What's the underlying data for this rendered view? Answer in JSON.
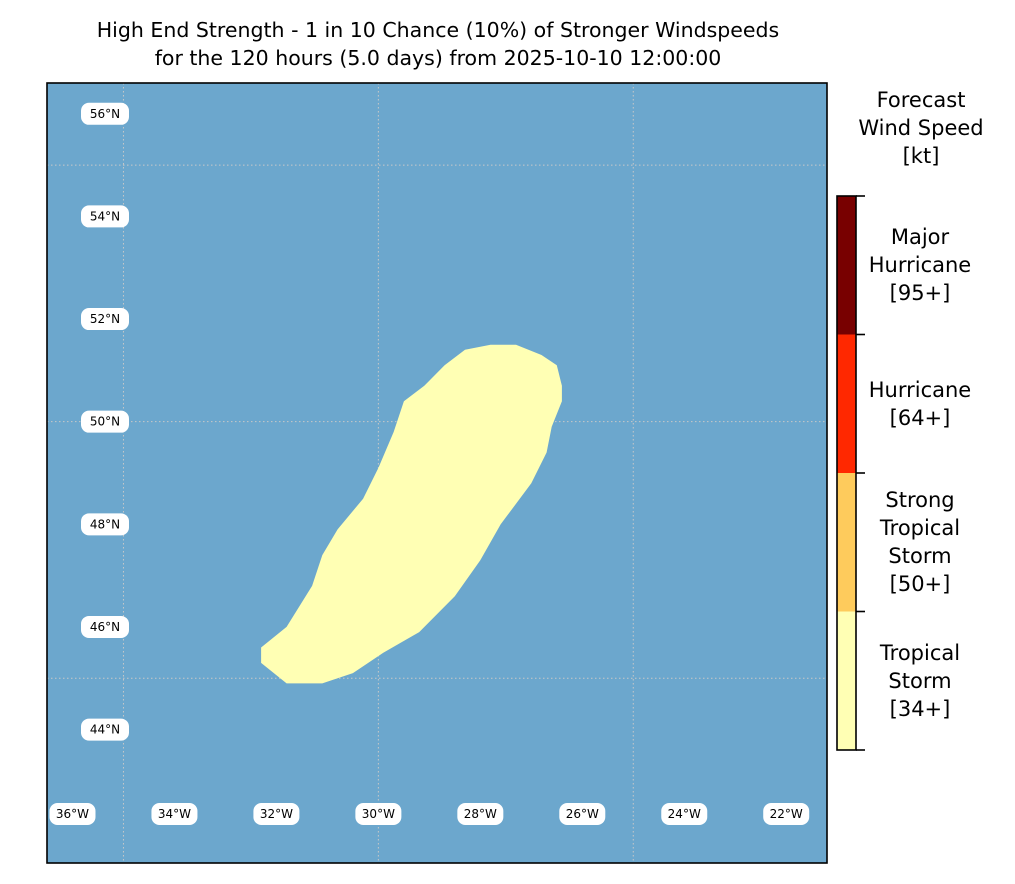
{
  "title": {
    "line1": "High End Strength - 1 in 10 Chance (10%) of Stronger Windspeeds",
    "line2": "for the 120 hours (5.0 days) from 2025-10-10 12:00:00"
  },
  "map": {
    "ocean_color": "#6ca7cd",
    "grid_color": "#c8c8c8",
    "lon_range": [
      -36.5,
      -21.2
    ],
    "lat_range": [
      41.4,
      56.6
    ],
    "lat_labels": [
      "56°N",
      "54°N",
      "52°N",
      "50°N",
      "48°N",
      "46°N",
      "44°N"
    ],
    "lon_labels": [
      "36°W",
      "34°W",
      "32°W",
      "30°W",
      "28°W",
      "26°W",
      "24°W",
      "22°W"
    ],
    "swath": {
      "category": "Tropical Storm",
      "color": "#ffffb4",
      "polygon": [
        [
          -32.3,
          45.6
        ],
        [
          -32.3,
          45.3
        ],
        [
          -31.8,
          44.9
        ],
        [
          -31.1,
          44.9
        ],
        [
          -30.5,
          45.1
        ],
        [
          -29.9,
          45.5
        ],
        [
          -29.2,
          45.9
        ],
        [
          -28.5,
          46.6
        ],
        [
          -28.0,
          47.3
        ],
        [
          -27.6,
          48.0
        ],
        [
          -27.0,
          48.8
        ],
        [
          -26.7,
          49.4
        ],
        [
          -26.6,
          49.9
        ],
        [
          -26.4,
          50.4
        ],
        [
          -26.4,
          50.7
        ],
        [
          -26.5,
          51.1
        ],
        [
          -26.8,
          51.3
        ],
        [
          -27.3,
          51.5
        ],
        [
          -27.8,
          51.5
        ],
        [
          -28.3,
          51.4
        ],
        [
          -28.7,
          51.1
        ],
        [
          -29.1,
          50.7
        ],
        [
          -29.5,
          50.4
        ],
        [
          -29.7,
          49.8
        ],
        [
          -30.0,
          49.1
        ],
        [
          -30.3,
          48.5
        ],
        [
          -30.8,
          47.9
        ],
        [
          -31.1,
          47.4
        ],
        [
          -31.3,
          46.8
        ],
        [
          -31.8,
          46.0
        ]
      ]
    }
  },
  "colorbar": {
    "title": [
      "Forecast",
      "Wind Speed",
      "[kt]"
    ],
    "categories": [
      {
        "name": "Tropical Storm",
        "threshold": 34,
        "color": "#ffffb4",
        "label": [
          "Tropical",
          "Storm",
          "[34+]"
        ]
      },
      {
        "name": "Strong Tropical Storm",
        "threshold": 50,
        "color": "#fecb5c",
        "label": [
          "Strong",
          "Tropical",
          "Storm",
          "[50+]"
        ]
      },
      {
        "name": "Hurricane",
        "threshold": 64,
        "color": "#ff2800",
        "label": [
          "Hurricane",
          "[64+]"
        ]
      },
      {
        "name": "Major Hurricane",
        "threshold": 95,
        "color": "#780000",
        "label": [
          "Major",
          "Hurricane",
          "[95+]"
        ]
      }
    ]
  }
}
